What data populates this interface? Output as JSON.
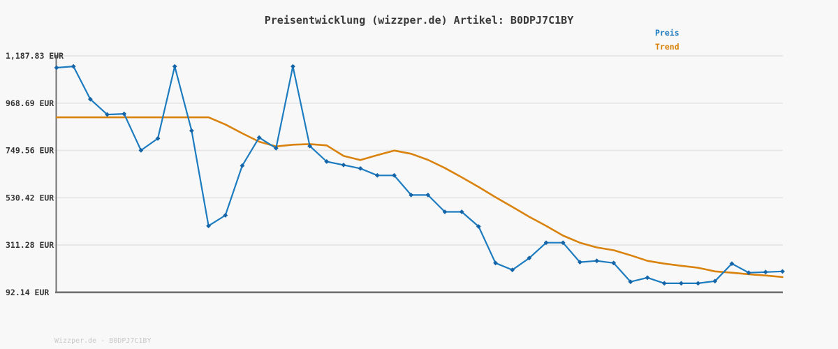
{
  "page": {
    "title": "Preisentwicklung (wizzper.de) Artikel: B0DPJ7C1BY",
    "watermark": "Wizzper.de - B0DPJ7C1BY"
  },
  "colors": {
    "background": "#f8f8f8",
    "title_text": "#3a3a3a",
    "tick_text": "#333333",
    "gridline": "#e6e6e6",
    "axis": "#717171",
    "watermark_text": "#c8c8c8",
    "preis_blue": "#1d7bbf",
    "preis_marker": "#1565a8",
    "trend_orange": "#d9830e"
  },
  "chart_data": {
    "type": "line",
    "title": "Preisentwicklung (wizzper.de) Artikel: B0DPJ7C1BY",
    "xlabel": "",
    "ylabel": "",
    "x_tick_labels": [],
    "grid": true,
    "legend_position": "top-right",
    "ylim": [
      92.14,
      1187.83
    ],
    "yticks": [
      {
        "label": "1,187.83 EUR",
        "value": 1187.83
      },
      {
        "label": "968.69 EUR",
        "value": 968.69
      },
      {
        "label": "749.56 EUR",
        "value": 749.56
      },
      {
        "label": "530.42 EUR",
        "value": 530.42
      },
      {
        "label": "311.28 EUR",
        "value": 311.28
      },
      {
        "label": "92.14 EUR",
        "value": 92.14
      }
    ],
    "unit": "EUR",
    "x_count": 44,
    "series": [
      {
        "name": "Trend",
        "color": "#d9830e",
        "markers": false,
        "values": [
          903,
          903,
          903,
          903,
          903,
          903,
          903,
          903,
          903,
          903,
          870,
          829,
          790,
          768,
          776,
          779,
          773,
          724,
          705,
          728,
          749,
          734,
          706,
          668,
          625,
          580,
          533,
          488,
          442,
          400,
          355,
          322,
          300,
          287,
          264,
          238,
          225,
          215,
          206,
          189,
          183,
          176,
          170,
          163
        ]
      },
      {
        "name": "Preis",
        "color": "#1d7bbf",
        "markers": true,
        "values": [
          1133,
          1139,
          987,
          916,
          919,
          750,
          805,
          1139,
          841,
          400,
          449,
          679,
          809,
          760,
          1139,
          770,
          698,
          682,
          666,
          634,
          634,
          543,
          543,
          465,
          465,
          397,
          228,
          196,
          251,
          322,
          322,
          232,
          238,
          228,
          141,
          160,
          134,
          134,
          134,
          144,
          225,
          183,
          186,
          189
        ]
      }
    ]
  }
}
